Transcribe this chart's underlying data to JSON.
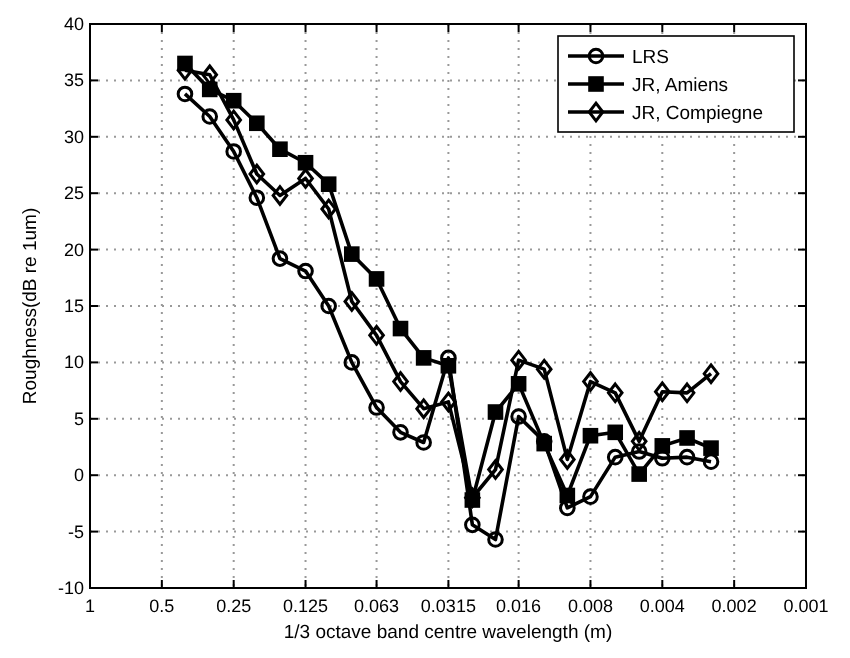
{
  "chart_data": {
    "type": "line",
    "xlabel": "1/3 octave band centre wavelength (m)",
    "ylabel": "Roughness(dB re 1um)",
    "x": [
      0.4,
      0.315,
      0.25,
      0.2,
      0.16,
      0.125,
      0.1,
      0.08,
      0.063,
      0.05,
      0.04,
      0.0315,
      0.025,
      0.02,
      0.016,
      0.0125,
      0.01,
      0.008,
      0.0063,
      0.005,
      0.004,
      0.00315,
      0.0025
    ],
    "series": [
      {
        "name": "LRS",
        "color": "#000000",
        "marker": "circle",
        "values": [
          33.8,
          31.8,
          28.7,
          24.6,
          19.2,
          18.1,
          15.0,
          10.0,
          6.0,
          3.8,
          2.9,
          10.4,
          -4.4,
          -5.7,
          5.2,
          3.0,
          -2.9,
          -1.9,
          1.6,
          2.1,
          1.5,
          1.6,
          1.2
        ]
      },
      {
        "name": "JR, Amiens",
        "color": "#000000",
        "marker": "square",
        "values": [
          36.5,
          34.2,
          33.2,
          31.2,
          28.9,
          27.7,
          25.8,
          19.6,
          17.4,
          13.0,
          10.4,
          9.7,
          -2.2,
          5.6,
          8.1,
          2.8,
          -1.8,
          3.5,
          3.8,
          0.1,
          2.6,
          3.3,
          2.4
        ]
      },
      {
        "name": "JR, Compiegne",
        "color": "#000000",
        "marker": "diamond",
        "values": [
          35.9,
          35.5,
          31.5,
          26.7,
          24.8,
          26.3,
          23.6,
          15.4,
          12.4,
          8.3,
          5.9,
          6.5,
          -2.0,
          0.5,
          10.2,
          9.4,
          1.4,
          8.3,
          7.3,
          3.0,
          7.4,
          7.3,
          9.0
        ]
      }
    ],
    "log": "x",
    "xlim": [
      1,
      0.001
    ],
    "xticks": [
      1,
      0.5,
      0.25,
      0.125,
      0.063,
      0.0315,
      0.016,
      0.008,
      0.004,
      0.002,
      0.001
    ],
    "ylim": [
      -10,
      40
    ],
    "yticks": [
      -10,
      -5,
      0,
      5,
      10,
      15,
      20,
      25,
      30,
      35,
      40
    ],
    "grid": true,
    "legend": "top right",
    "line_style": "solid"
  }
}
